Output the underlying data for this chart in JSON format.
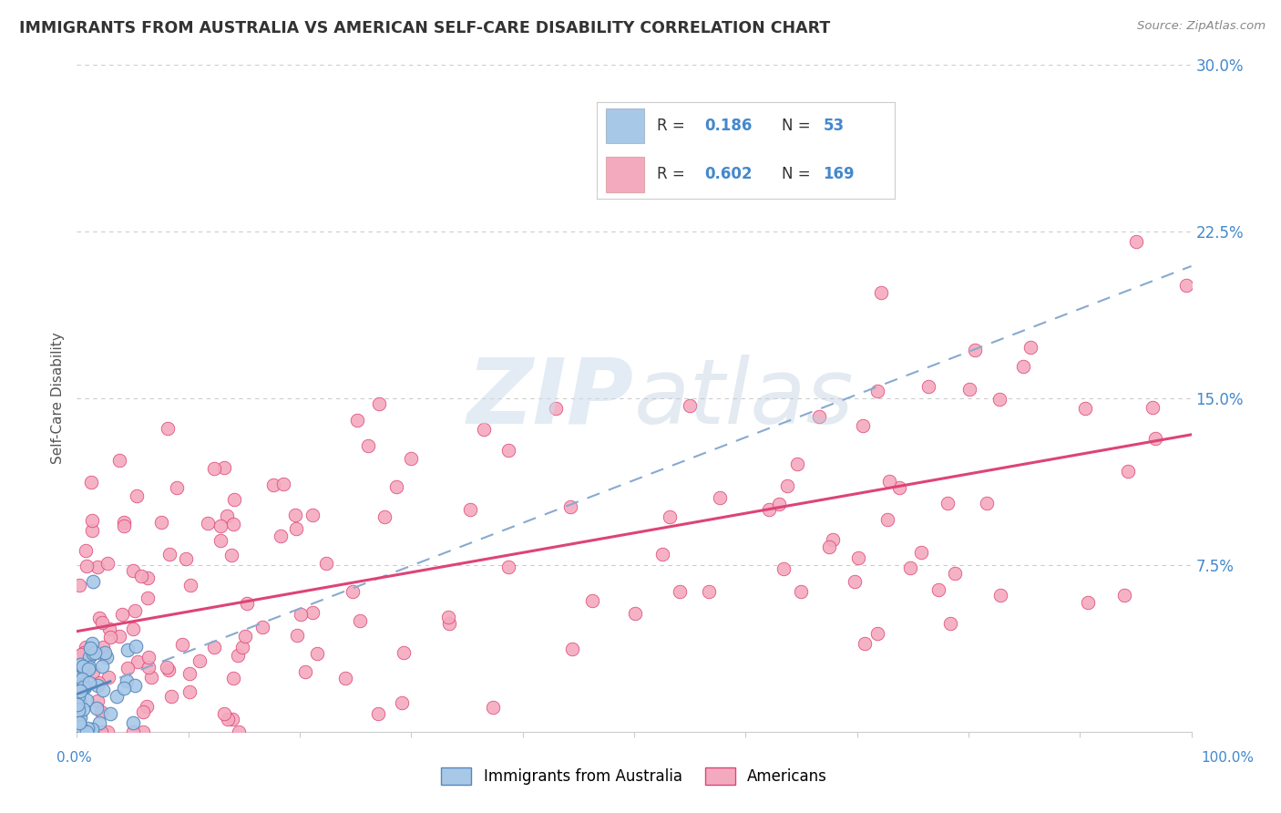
{
  "title": "IMMIGRANTS FROM AUSTRALIA VS AMERICAN SELF-CARE DISABILITY CORRELATION CHART",
  "source": "Source: ZipAtlas.com",
  "ylabel": "Self-Care Disability",
  "color_blue": "#A8C8E8",
  "color_pink": "#F4AABE",
  "line_blue": "#5588BB",
  "line_pink": "#DD4477",
  "watermark_zip": "ZIP",
  "watermark_atlas": "atlas",
  "xmin": 0,
  "xmax": 100,
  "ymin": 0,
  "ymax": 30,
  "bg_color": "#FFFFFF",
  "grid_color": "#CCCCCC",
  "yticks": [
    0,
    7.5,
    15.0,
    22.5,
    30.0
  ],
  "ytick_labels": [
    "",
    "7.5%",
    "15.0%",
    "22.5%",
    "30.0%"
  ],
  "legend_r1": "R = ",
  "legend_v1": "0.186",
  "legend_n1_label": "N = ",
  "legend_n1_val": "53",
  "legend_r2": "R = ",
  "legend_v2": "0.602",
  "legend_n2_label": "N = ",
  "legend_n2_val": "169",
  "tick_color": "#4488CC"
}
